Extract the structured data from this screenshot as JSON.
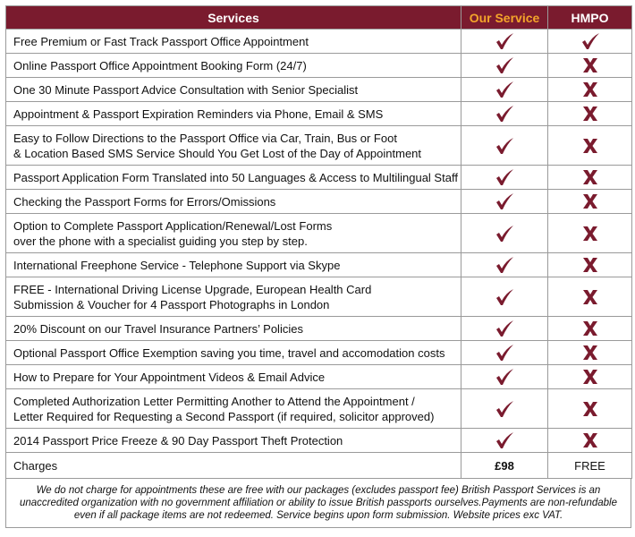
{
  "header": {
    "services": "Services",
    "our_service": "Our Service",
    "hmpo": "HMPO"
  },
  "rows": [
    {
      "lines": [
        "Free Premium or Fast Track Passport Office Appointment"
      ],
      "our": true,
      "hmpo": true
    },
    {
      "lines": [
        "Online Passport Office Appointment Booking Form (24/7)"
      ],
      "our": true,
      "hmpo": false
    },
    {
      "lines": [
        "One 30 Minute Passport Advice Consultation with Senior Specialist"
      ],
      "our": true,
      "hmpo": false
    },
    {
      "lines": [
        "Appointment & Passport Expiration Reminders via Phone, Email & SMS"
      ],
      "our": true,
      "hmpo": false
    },
    {
      "lines": [
        "Easy to Follow Directions to the Passport Office via Car, Train, Bus or Foot",
        "& Location Based SMS Service Should You Get Lost of the Day of Appointment"
      ],
      "our": true,
      "hmpo": false
    },
    {
      "lines": [
        "Passport Application Form Translated into 50 Languages & Access to Multilingual Staff"
      ],
      "our": true,
      "hmpo": false
    },
    {
      "lines": [
        "Checking the Passport Forms for Errors/Omissions"
      ],
      "our": true,
      "hmpo": false
    },
    {
      "lines": [
        "Option to Complete Passport Application/Renewal/Lost Forms",
        "over the phone with a specialist guiding you step by step."
      ],
      "our": true,
      "hmpo": false
    },
    {
      "lines": [
        "International Freephone Service - Telephone Support via Skype"
      ],
      "our": true,
      "hmpo": false
    },
    {
      "lines": [
        "FREE - International Driving License Upgrade, European Health Card",
        "Submission & Voucher for 4 Passport Photographs in London"
      ],
      "our": true,
      "hmpo": false
    },
    {
      "lines": [
        "20% Discount on our Travel Insurance Partners’ Policies"
      ],
      "our": true,
      "hmpo": false
    },
    {
      "lines": [
        "Optional Passport Office Exemption saving you time, travel and accomodation costs"
      ],
      "our": true,
      "hmpo": false
    },
    {
      "lines": [
        "How to Prepare for Your Appointment Videos & Email Advice"
      ],
      "our": true,
      "hmpo": false
    },
    {
      "lines": [
        "Completed Authorization Letter Permitting Another to Attend the Appointment /",
        "Letter Required for Requesting a Second Passport (if required, solicitor approved)"
      ],
      "our": true,
      "hmpo": false
    },
    {
      "lines": [
        "2014 Passport Price Freeze & 90 Day Passport Theft Protection"
      ],
      "our": true,
      "hmpo": false
    }
  ],
  "charges": {
    "label": "Charges",
    "our": "£98",
    "hmpo": "FREE"
  },
  "note": "We do not charge for appointments these are free with our packages (excludes passport fee) British Passport Services is an unaccredited organization with no government affiliation or ability to issue British passports ourselves.Payments are non-refundable even if all package items are not redeemed. Service begins upon form submission. Website prices exc VAT."
}
